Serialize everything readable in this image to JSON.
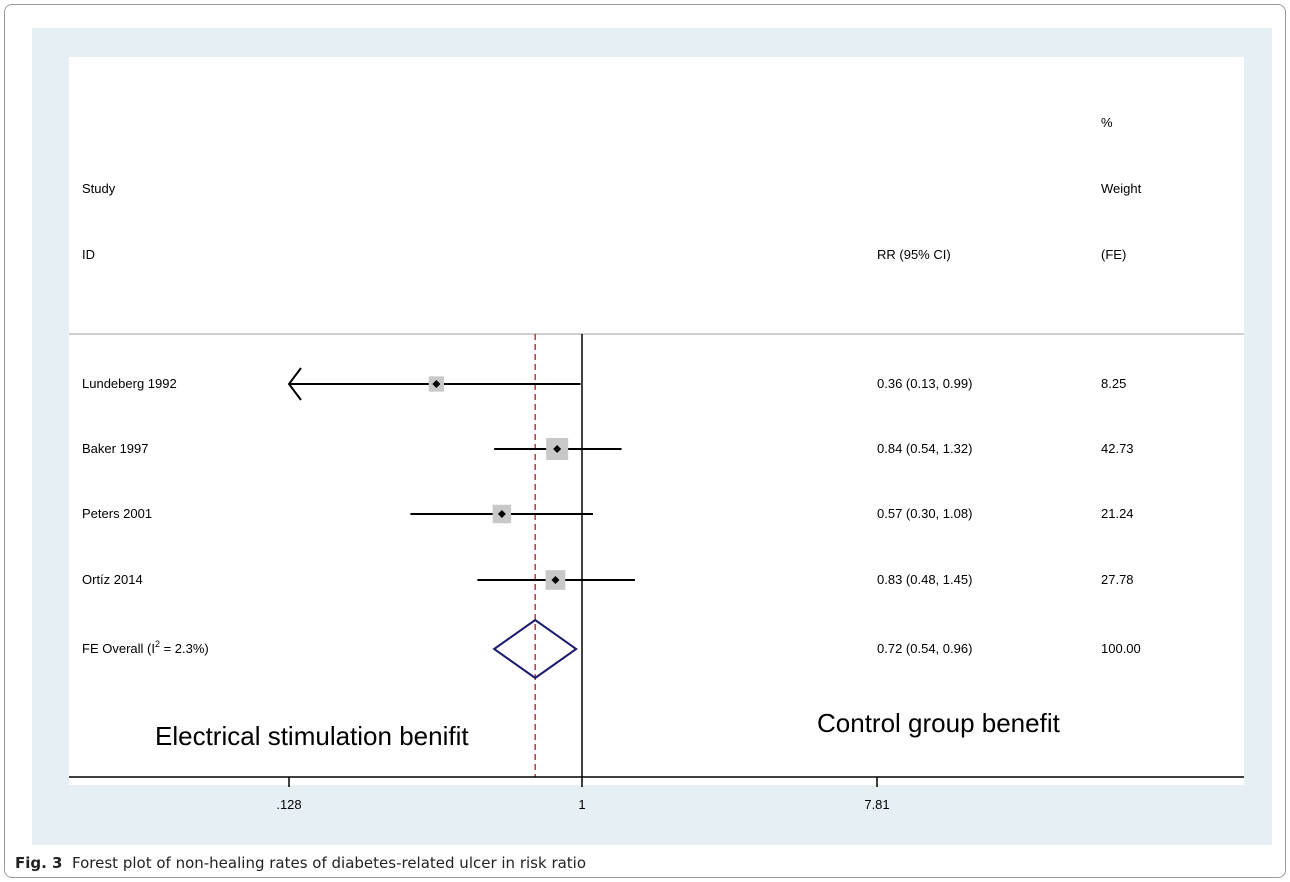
{
  "caption": {
    "figure_label": "Fig. 3",
    "text": "Forest plot of non-healing rates of diabetes-related ulcer in risk ratio"
  },
  "chart_data": {
    "type": "forest",
    "header": {
      "study_col": [
        "Study",
        "ID"
      ],
      "effect_col": "RR (95% CI)",
      "weight_col": [
        "%",
        "Weight",
        "(FE)"
      ]
    },
    "studies": [
      {
        "label": "Lundeberg 1992",
        "rr": 0.36,
        "lo": 0.13,
        "hi": 0.99,
        "effect_text": "0.36 (0.13, 0.99)",
        "weight": 8.25,
        "weight_text": "8.25",
        "lower_clipped": true
      },
      {
        "label": "Baker 1997",
        "rr": 0.84,
        "lo": 0.54,
        "hi": 1.32,
        "effect_text": "0.84 (0.54, 1.32)",
        "weight": 42.73,
        "weight_text": "42.73",
        "lower_clipped": false
      },
      {
        "label": "Peters 2001",
        "rr": 0.57,
        "lo": 0.3,
        "hi": 1.08,
        "effect_text": "0.57 (0.30, 1.08)",
        "weight": 21.24,
        "weight_text": "21.24",
        "lower_clipped": false
      },
      {
        "label": "Ortíz 2014",
        "rr": 0.83,
        "lo": 0.48,
        "hi": 1.45,
        "effect_text": "0.83 (0.48, 1.45)",
        "weight": 27.78,
        "weight_text": "27.78",
        "lower_clipped": false
      }
    ],
    "overall": {
      "label_prefix": "FE Overall  (I",
      "label_sup": "2",
      "label_suffix": " = 2.3%)",
      "rr": 0.72,
      "lo": 0.54,
      "hi": 0.96,
      "effect_text": "0.72 (0.54, 0.96)",
      "weight_text": "100.00"
    },
    "x_scale": "log",
    "xlim": [
      0.128,
      7.81
    ],
    "null_line": 1,
    "x_ticks": [
      {
        "value": 0.128,
        "label": ".128"
      },
      {
        "value": 1,
        "label": "1"
      },
      {
        "value": 7.81,
        "label": "7.81"
      }
    ],
    "annotations": {
      "left": "Electrical stimulation benifit",
      "right": "Control group benefit"
    },
    "colors": {
      "plot_bg": "#ffffff",
      "panel_bg": "#e6eff3",
      "ci_line": "#000000",
      "weight_box": "#c8c8c8",
      "point": "#000000",
      "overall_diamond": "#1a1a6e",
      "overall_line": "#b03a48"
    }
  }
}
